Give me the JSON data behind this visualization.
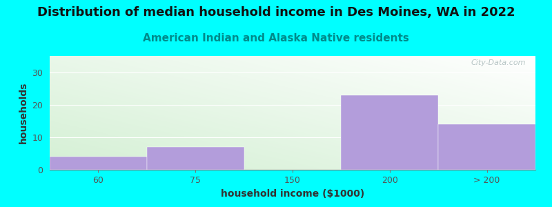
{
  "title": "Distribution of median household income in Des Moines, WA in 2022",
  "subtitle": "American Indian and Alaska Native residents",
  "subtitle_color": "#008B8B",
  "xlabel": "household income ($1000)",
  "ylabel": "households",
  "background_color": "#00FFFF",
  "bar_color": "#b39ddb",
  "categories": [
    "60",
    "75",
    "150",
    "200",
    "> 200"
  ],
  "values": [
    4,
    7,
    0,
    23,
    14
  ],
  "ylim": [
    0,
    35
  ],
  "yticks": [
    0,
    10,
    20,
    30
  ],
  "watermark_text": "City-Data.com",
  "watermark_color": "#aabbbb",
  "title_fontsize": 13,
  "subtitle_fontsize": 11,
  "xlabel_fontsize": 10,
  "ylabel_fontsize": 10,
  "tick_fontsize": 9,
  "tick_color": "#555555"
}
